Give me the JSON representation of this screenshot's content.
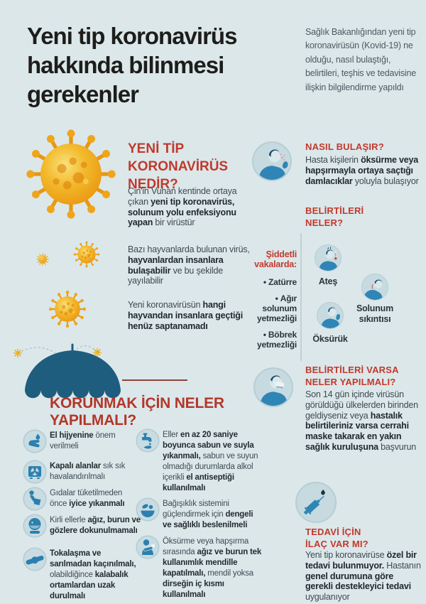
{
  "colors": {
    "background": "#dce7ea",
    "accent_red": "#c03a2c",
    "korunmak_red": "#b23729",
    "title_black": "#1d1d1b",
    "body_text": "#3d4a52",
    "intro_gray": "#4d5961",
    "icon_blue": "#2f86b6",
    "icon_hair_blue": "#1b4a6d",
    "circle_bg": "#c6dae0",
    "umbrella_teal": "#1e5d7e",
    "virus_orange": "#e8940e",
    "divider_gray": "#c0d1d7",
    "divider_red": "#8f4238"
  },
  "header": {
    "title_lines": [
      "Yeni tip koronavirüs",
      "hakkında bilinmesi",
      "gerekenler"
    ],
    "intro": "Sağlık Bakanlığından yeni tip koronavirüsün (Kovid-19) ne olduğu, nasıl bulaştığı, belirtileri, teşhis ve tedavisine ilişkin bilgilendirme yapıldı"
  },
  "nedir": {
    "heading_lines": [
      "YENİ TİP",
      "KORONAVİRÜS",
      "NEDİR?"
    ],
    "paragraphs": [
      [
        {
          "t": "Çin'in Vuhan kentinde ortaya çıkan "
        },
        {
          "t": "yeni tip koronavirüs, solunum yolu enfeksiyonu yapan",
          "b": true
        },
        {
          "t": " bir virüstür"
        }
      ],
      [
        {
          "t": "Bazı hayvanlarda bulunan virüs, "
        },
        {
          "t": "hayvanlardan insanlara bulaşabilir",
          "b": true
        },
        {
          "t": " ve bu şekilde yayılabilir"
        }
      ],
      [
        {
          "t": "Yeni koronavirüsün "
        },
        {
          "t": "hangi hayvandan insanlara geçtiği henüz saptanamadı",
          "b": true
        }
      ]
    ]
  },
  "nasil_bulasir": {
    "heading": "NASIL BULAŞIR?",
    "icon": "coughing-person-icon",
    "body": [
      {
        "t": "Hasta kişilerin "
      },
      {
        "t": "öksürme veya hapşırmayla ortaya saçtığı damlacıklar",
        "b": true
      },
      {
        "t": " yoluyla bulaşıyor"
      }
    ]
  },
  "belirtiler": {
    "heading_lines": [
      "BELİRTİLERİ",
      "NELER?"
    ],
    "severe": {
      "title_lines": [
        "Şiddetli",
        "vakalarda:"
      ],
      "items": [
        "Zatürre",
        "Ağır solunum yetmezliği",
        "Böbrek yetmezliği"
      ]
    },
    "symptoms": [
      {
        "label": "Ateş",
        "icon": "fever-icon"
      },
      {
        "label": "Solunum sıkıntısı",
        "icon": "breathing-difficulty-icon"
      },
      {
        "label": "Öksürük",
        "icon": "cough-icon"
      }
    ]
  },
  "belirtiler_varsa": {
    "heading_lines": [
      "BELİRTİLERİ VARSA",
      "NELER YAPILMALI?"
    ],
    "icon": "masked-person-icon",
    "body": [
      {
        "t": "Son 14 gün içinde virüsün görüldüğü ülkelerden birinden geldiyseniz veya "
      },
      {
        "t": "hastalık belirtileriniz varsa cerrahi maske takarak en yakın sağlık kuruluşuna",
        "b": true
      },
      {
        "t": " başvurun"
      }
    ]
  },
  "korunmak": {
    "heading": "KORUNMAK İÇİN NELER YAPILMALI?",
    "illustration": "umbrella-blocking-viruses",
    "items_col1": [
      {
        "icon": "hand-hygiene-icon",
        "text": [
          {
            "t": "El hijyenine",
            "b": true
          },
          {
            "t": " önem verilmeli"
          }
        ]
      },
      {
        "icon": "ventilation-icon",
        "text": [
          {
            "t": "Kapalı alanlar",
            "b": true
          },
          {
            "t": " sık sık havalandırılmalı"
          }
        ]
      },
      {
        "icon": "wash-food-icon",
        "text": [
          {
            "t": "Gıdalar tüketilmeden önce "
          },
          {
            "t": "iyice yıkanmalı",
            "b": true
          }
        ]
      },
      {
        "icon": "no-touch-face-icon",
        "text": [
          {
            "t": "Kirli ellerle "
          },
          {
            "t": "ağız, burun ve gözlere dokunulmamalı",
            "b": true
          }
        ]
      },
      {
        "icon": "handshake-icon",
        "text": [
          {
            "t": "Tokalaşma ve sarılmadan kaçınılmalı,",
            "b": true
          },
          {
            "t": " olabildiğince "
          },
          {
            "t": "kalabalık ortamlardan uzak durulmalı",
            "b": true
          }
        ]
      }
    ],
    "items_col2": [
      {
        "icon": "tap-wash-icon",
        "text": [
          {
            "t": "Eller "
          },
          {
            "t": "en az 20 saniye boyunca sabun ve suyla yıkanmalı,",
            "b": true
          },
          {
            "t": " sabun ve suyun olmadığı durumlarda alkol içerikli "
          },
          {
            "t": "el antiseptiği kullanılmalı",
            "b": true
          }
        ]
      },
      {
        "icon": "healthy-food-icon",
        "text": [
          {
            "t": "Bağışıklık sistemini güçlendirmek için "
          },
          {
            "t": "dengeli ve sağlıklı beslenilmeli",
            "b": true
          }
        ]
      },
      {
        "icon": "cough-etiquette-icon",
        "text": [
          {
            "t": "Öksürme veya hapşırma sırasında "
          },
          {
            "t": "ağız ve burun tek kullanımlık mendille kapatılmalı,",
            "b": true
          },
          {
            "t": " mendil yoksa "
          },
          {
            "t": "dirseğin iç kısmı kullanılmalı",
            "b": true
          }
        ]
      }
    ]
  },
  "tedavi": {
    "heading_lines": [
      "TEDAVİ İÇİN",
      "İLAÇ VAR MI?"
    ],
    "icon": "syringe-icon",
    "body": [
      {
        "t": "Yeni tip koronavirüse "
      },
      {
        "t": "özel bir tedavi bulunmuyor.",
        "b": true
      },
      {
        "t": " Hastanın "
      },
      {
        "t": "genel durumuna göre gerekli destekleyici tedavi",
        "b": true
      },
      {
        "t": " uygulanıyor"
      }
    ]
  }
}
